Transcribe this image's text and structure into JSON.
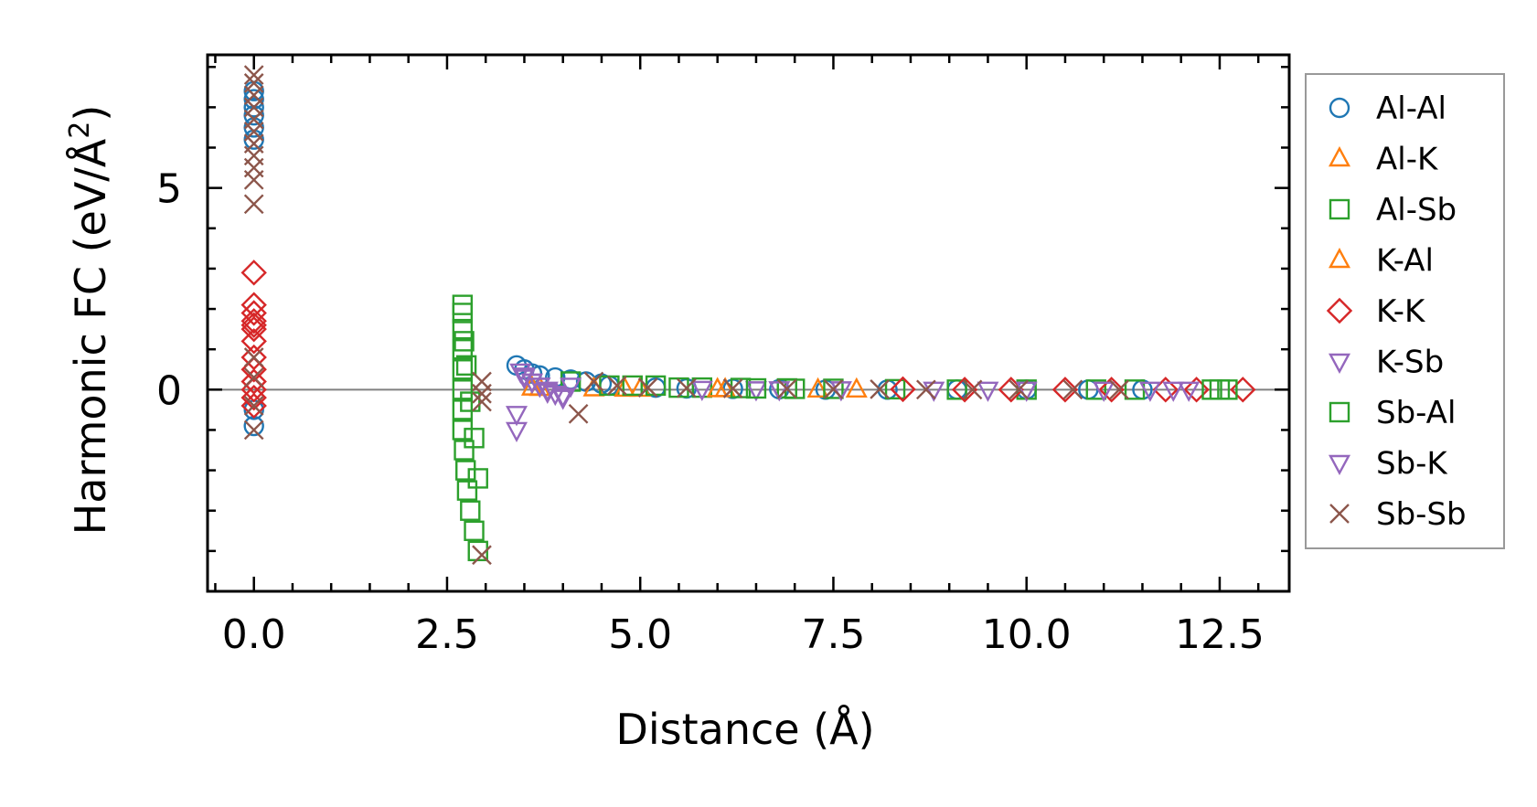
{
  "chart_data": {
    "type": "scatter",
    "xlabel": "Distance (Å)",
    "ylabel_main": "Harmonic FC (eV/Å",
    "ylabel_sup": "2",
    "ylabel_close": ")",
    "xlim": [
      -0.6,
      13.4
    ],
    "ylim": [
      -5,
      8.3
    ],
    "xticks": [
      0,
      2.5,
      5,
      7.5,
      10,
      12.5
    ],
    "xtick_labels": [
      "0.0",
      "2.5",
      "5.0",
      "7.5",
      "10.0",
      "12.5"
    ],
    "yticks": [
      0,
      5
    ],
    "ytick_labels": [
      "0",
      "5"
    ],
    "zero_line": true,
    "grid": false,
    "legend_position": "right, outside plot",
    "series": [
      {
        "name": "Al-Al",
        "marker": "circle",
        "color": "#1f77b4",
        "x": [
          0,
          0,
          0,
          0,
          0,
          0,
          0,
          0,
          3.4,
          3.5,
          3.6,
          3.7,
          3.9,
          4.1,
          4.3,
          4.5,
          4.6,
          5.2,
          5.6,
          6.2,
          6.8,
          7.4,
          8.2,
          9.1,
          10.0,
          10.8,
          11.5
        ],
        "y": [
          7.4,
          7.2,
          7.0,
          6.8,
          6.5,
          6.2,
          -0.5,
          -0.9,
          0.6,
          0.5,
          0.4,
          0.35,
          0.3,
          0.25,
          0.2,
          0.15,
          0.1,
          0.05,
          0.03,
          0.02,
          0.01,
          0,
          0,
          0,
          0,
          0,
          0
        ]
      },
      {
        "name": "Al-K",
        "marker": "triangle-up",
        "color": "#ff7f0e",
        "x": [
          3.6,
          4.4,
          5.0,
          6.1,
          7.3
        ],
        "y": [
          0.05,
          0.03,
          0.02,
          0.01,
          0
        ]
      },
      {
        "name": "Al-Sb",
        "marker": "square",
        "color": "#2ca02c",
        "x": [
          2.7,
          2.7,
          2.7,
          2.7,
          2.7,
          2.7,
          2.7,
          2.7,
          2.72,
          2.74,
          2.76,
          2.8,
          2.85,
          2.9,
          4.1,
          4.6,
          5.2,
          5.8,
          6.3,
          6.9,
          7.5,
          8.3,
          9.1,
          10.0,
          10.9,
          11.4
        ],
        "y": [
          2.1,
          1.9,
          1.5,
          1.0,
          0.5,
          0,
          -0.5,
          -1.0,
          -1.5,
          -2.0,
          -2.5,
          -3.0,
          -3.5,
          -4.0,
          0.2,
          0.1,
          0.1,
          0.05,
          0.04,
          0.03,
          0.02,
          0.01,
          0,
          0,
          0,
          0
        ]
      },
      {
        "name": "K-Al",
        "marker": "triangle-up",
        "color": "#ff7f0e",
        "x": [
          3.7,
          4.8,
          6.0,
          7.8
        ],
        "y": [
          0.04,
          0.02,
          0.01,
          0
        ]
      },
      {
        "name": "K-K",
        "marker": "diamond",
        "color": "#d62728",
        "x": [
          0,
          0,
          0,
          0,
          0,
          0,
          0,
          0,
          0,
          0,
          0,
          0,
          0,
          8.4,
          9.2,
          9.8,
          10.5,
          11.1,
          11.8,
          12.2,
          12.8
        ],
        "y": [
          2.9,
          2.1,
          1.9,
          1.7,
          1.6,
          1.5,
          1.2,
          0.8,
          0.5,
          0.2,
          0,
          -0.2,
          -0.4,
          0.01,
          0,
          0,
          0,
          0,
          0,
          0,
          0
        ]
      },
      {
        "name": "K-Sb",
        "marker": "triangle-down",
        "color": "#9467bd",
        "x": [
          3.4,
          3.4,
          3.45,
          3.5,
          3.6,
          3.7,
          3.8,
          3.9,
          4.0,
          4.1,
          5.8,
          6.5,
          7.6,
          8.8,
          10.0,
          11.0,
          11.9,
          12.1
        ],
        "y": [
          -1.0,
          -0.6,
          0.45,
          0.3,
          0.2,
          0.1,
          0,
          -0.1,
          -0.2,
          0.1,
          0.02,
          0.01,
          0.01,
          0,
          0,
          0,
          0,
          0
        ]
      },
      {
        "name": "Sb-Al",
        "marker": "square",
        "color": "#2ca02c",
        "x": [
          2.72,
          2.75,
          2.8,
          2.85,
          2.9,
          4.9,
          5.5,
          6.5,
          7.0,
          12.4,
          12.5,
          12.6
        ],
        "y": [
          1.2,
          0.6,
          -0.3,
          -1.2,
          -2.2,
          0.1,
          0.05,
          0.03,
          0.02,
          0,
          0,
          0
        ]
      },
      {
        "name": "Sb-K",
        "marker": "triangle-down",
        "color": "#9467bd",
        "x": [
          3.5,
          3.6,
          3.7,
          3.8,
          4.0,
          6.8,
          9.5,
          11.6
        ],
        "y": [
          0.35,
          0.2,
          0.1,
          -0.05,
          -0.15,
          0.01,
          0,
          0
        ]
      },
      {
        "name": "Sb-Sb",
        "marker": "x",
        "color": "#8c564b",
        "x": [
          0,
          0,
          0,
          0,
          0,
          0,
          0,
          0,
          0,
          0,
          0,
          0,
          0,
          0,
          0,
          2.95,
          2.95,
          2.95,
          2.95,
          4.2,
          4.4,
          4.7,
          5.1,
          5.6,
          6.2,
          6.9,
          7.5,
          8.1,
          8.7,
          9.3,
          9.9,
          10.6,
          11.2
        ],
        "y": [
          7.8,
          7.6,
          7.3,
          7.0,
          6.7,
          6.4,
          6.1,
          5.8,
          5.5,
          5.2,
          4.6,
          0.8,
          0.3,
          -0.4,
          -1.0,
          0.2,
          -0.1,
          -0.3,
          -4.1,
          -0.6,
          0.2,
          0.1,
          0.05,
          0.04,
          0.03,
          0.02,
          0.01,
          0.01,
          0,
          0,
          0,
          0,
          0
        ]
      }
    ]
  }
}
